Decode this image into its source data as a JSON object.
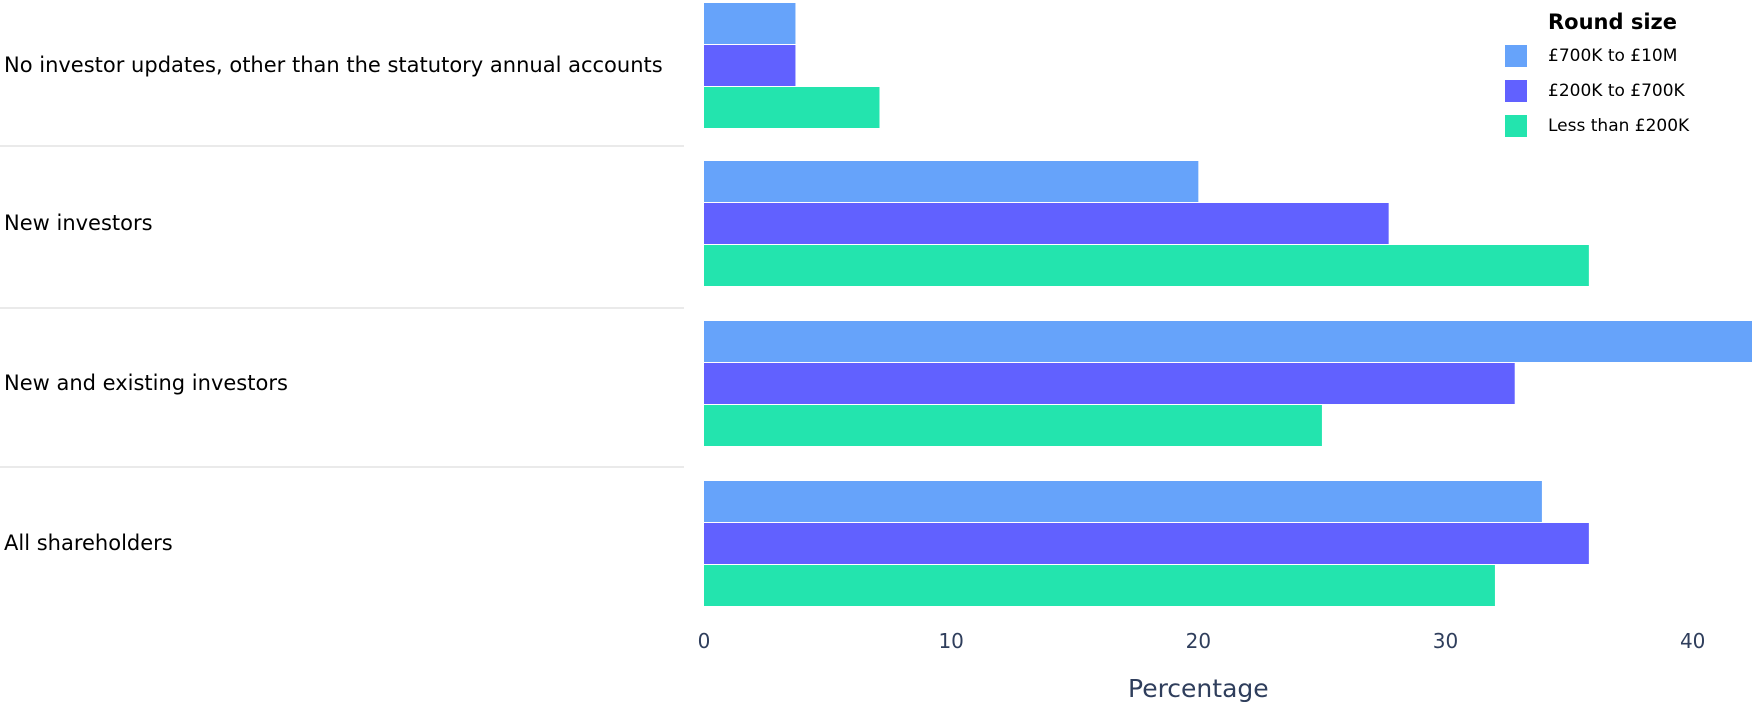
{
  "chart_data": {
    "type": "bar",
    "orientation": "horizontal",
    "categories": [
      "No investor updates, other than the statutory annual accounts",
      "New investors",
      "New and existing investors",
      "All shareholders"
    ],
    "series": [
      {
        "name": "£700K to £10M",
        "color": "#66a3fa",
        "values": [
          3.7,
          20.0,
          42.4,
          33.9
        ]
      },
      {
        "name": "£200K to £700K",
        "color": "#6161ff",
        "values": [
          3.7,
          27.7,
          32.8,
          35.8
        ]
      },
      {
        "name": "Less than £200K",
        "color": "#23e4ae",
        "values": [
          7.1,
          35.8,
          25.0,
          32.0
        ]
      }
    ],
    "xlabel": "Percentage",
    "ylabel": "",
    "xlim": [
      0,
      42.4
    ],
    "xticks": [
      0,
      10,
      20,
      30,
      40
    ],
    "legend": {
      "title": "Round size",
      "placement": "top-right"
    },
    "grid": false
  }
}
